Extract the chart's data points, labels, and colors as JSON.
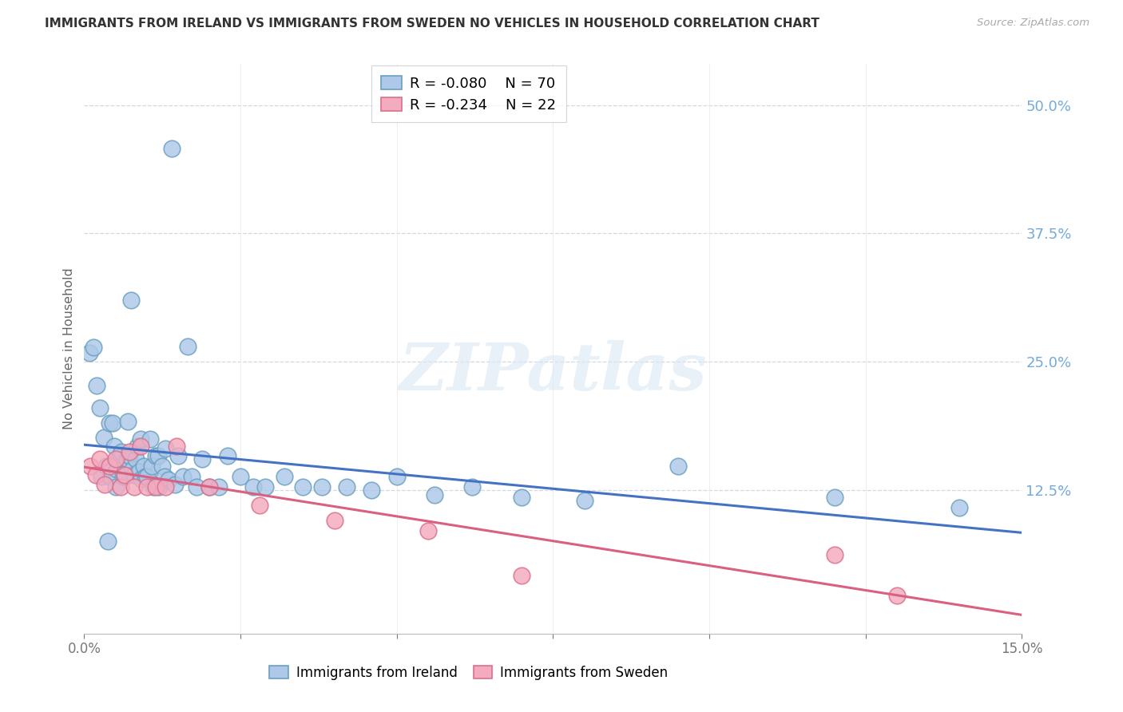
{
  "title": "IMMIGRANTS FROM IRELAND VS IMMIGRANTS FROM SWEDEN NO VEHICLES IN HOUSEHOLD CORRELATION CHART",
  "source": "Source: ZipAtlas.com",
  "ylabel": "No Vehicles in Household",
  "right_yticks": [
    "50.0%",
    "37.5%",
    "25.0%",
    "12.5%"
  ],
  "right_ytick_vals": [
    0.5,
    0.375,
    0.25,
    0.125
  ],
  "xmin": 0.0,
  "xmax": 0.15,
  "ymin": -0.015,
  "ymax": 0.54,
  "legend_blue_r": "-0.080",
  "legend_blue_n": "70",
  "legend_pink_r": "-0.234",
  "legend_pink_n": "22",
  "ireland_color": "#adc8e8",
  "sweden_color": "#f4aabf",
  "ireland_edge": "#6a9fc0",
  "sweden_edge": "#d9708a",
  "line_blue": "#4472c4",
  "line_pink": "#d96080",
  "title_color": "#333333",
  "right_axis_color": "#74aad8",
  "background": "#ffffff",
  "ireland_x": [
    0.0008,
    0.0015,
    0.002,
    0.0025,
    0.0028,
    0.0032,
    0.0035,
    0.0038,
    0.004,
    0.0042,
    0.0045,
    0.0048,
    0.005,
    0.0052,
    0.0055,
    0.0058,
    0.006,
    0.0062,
    0.0065,
    0.0068,
    0.007,
    0.0072,
    0.0075,
    0.0078,
    0.008,
    0.0082,
    0.0085,
    0.0088,
    0.009,
    0.0092,
    0.0095,
    0.0098,
    0.01,
    0.0105,
    0.0108,
    0.011,
    0.0115,
    0.0118,
    0.012,
    0.0125,
    0.0128,
    0.013,
    0.0135,
    0.014,
    0.0145,
    0.015,
    0.0158,
    0.0165,
    0.0172,
    0.018,
    0.0188,
    0.02,
    0.0215,
    0.023,
    0.025,
    0.027,
    0.029,
    0.032,
    0.035,
    0.038,
    0.042,
    0.046,
    0.05,
    0.056,
    0.062,
    0.07,
    0.08,
    0.095,
    0.12,
    0.14
  ],
  "ireland_y": [
    0.259,
    0.264,
    0.227,
    0.205,
    0.138,
    0.176,
    0.148,
    0.075,
    0.19,
    0.138,
    0.19,
    0.168,
    0.128,
    0.145,
    0.155,
    0.16,
    0.162,
    0.138,
    0.138,
    0.155,
    0.192,
    0.158,
    0.31,
    0.145,
    0.14,
    0.155,
    0.168,
    0.143,
    0.175,
    0.136,
    0.148,
    0.138,
    0.138,
    0.175,
    0.148,
    0.128,
    0.158,
    0.158,
    0.128,
    0.148,
    0.138,
    0.165,
    0.135,
    0.458,
    0.13,
    0.158,
    0.138,
    0.265,
    0.138,
    0.128,
    0.155,
    0.128,
    0.128,
    0.158,
    0.138,
    0.128,
    0.128,
    0.138,
    0.128,
    0.128,
    0.128,
    0.125,
    0.138,
    0.12,
    0.128,
    0.118,
    0.115,
    0.148,
    0.118,
    0.108
  ],
  "sweden_x": [
    0.001,
    0.0018,
    0.0025,
    0.0033,
    0.004,
    0.005,
    0.0058,
    0.0065,
    0.0072,
    0.008,
    0.009,
    0.01,
    0.0115,
    0.013,
    0.0148,
    0.02,
    0.028,
    0.04,
    0.055,
    0.07,
    0.12,
    0.13
  ],
  "sweden_y": [
    0.148,
    0.14,
    0.155,
    0.13,
    0.148,
    0.155,
    0.128,
    0.14,
    0.162,
    0.128,
    0.168,
    0.128,
    0.128,
    0.128,
    0.168,
    0.128,
    0.11,
    0.095,
    0.085,
    0.042,
    0.062,
    0.022
  ]
}
